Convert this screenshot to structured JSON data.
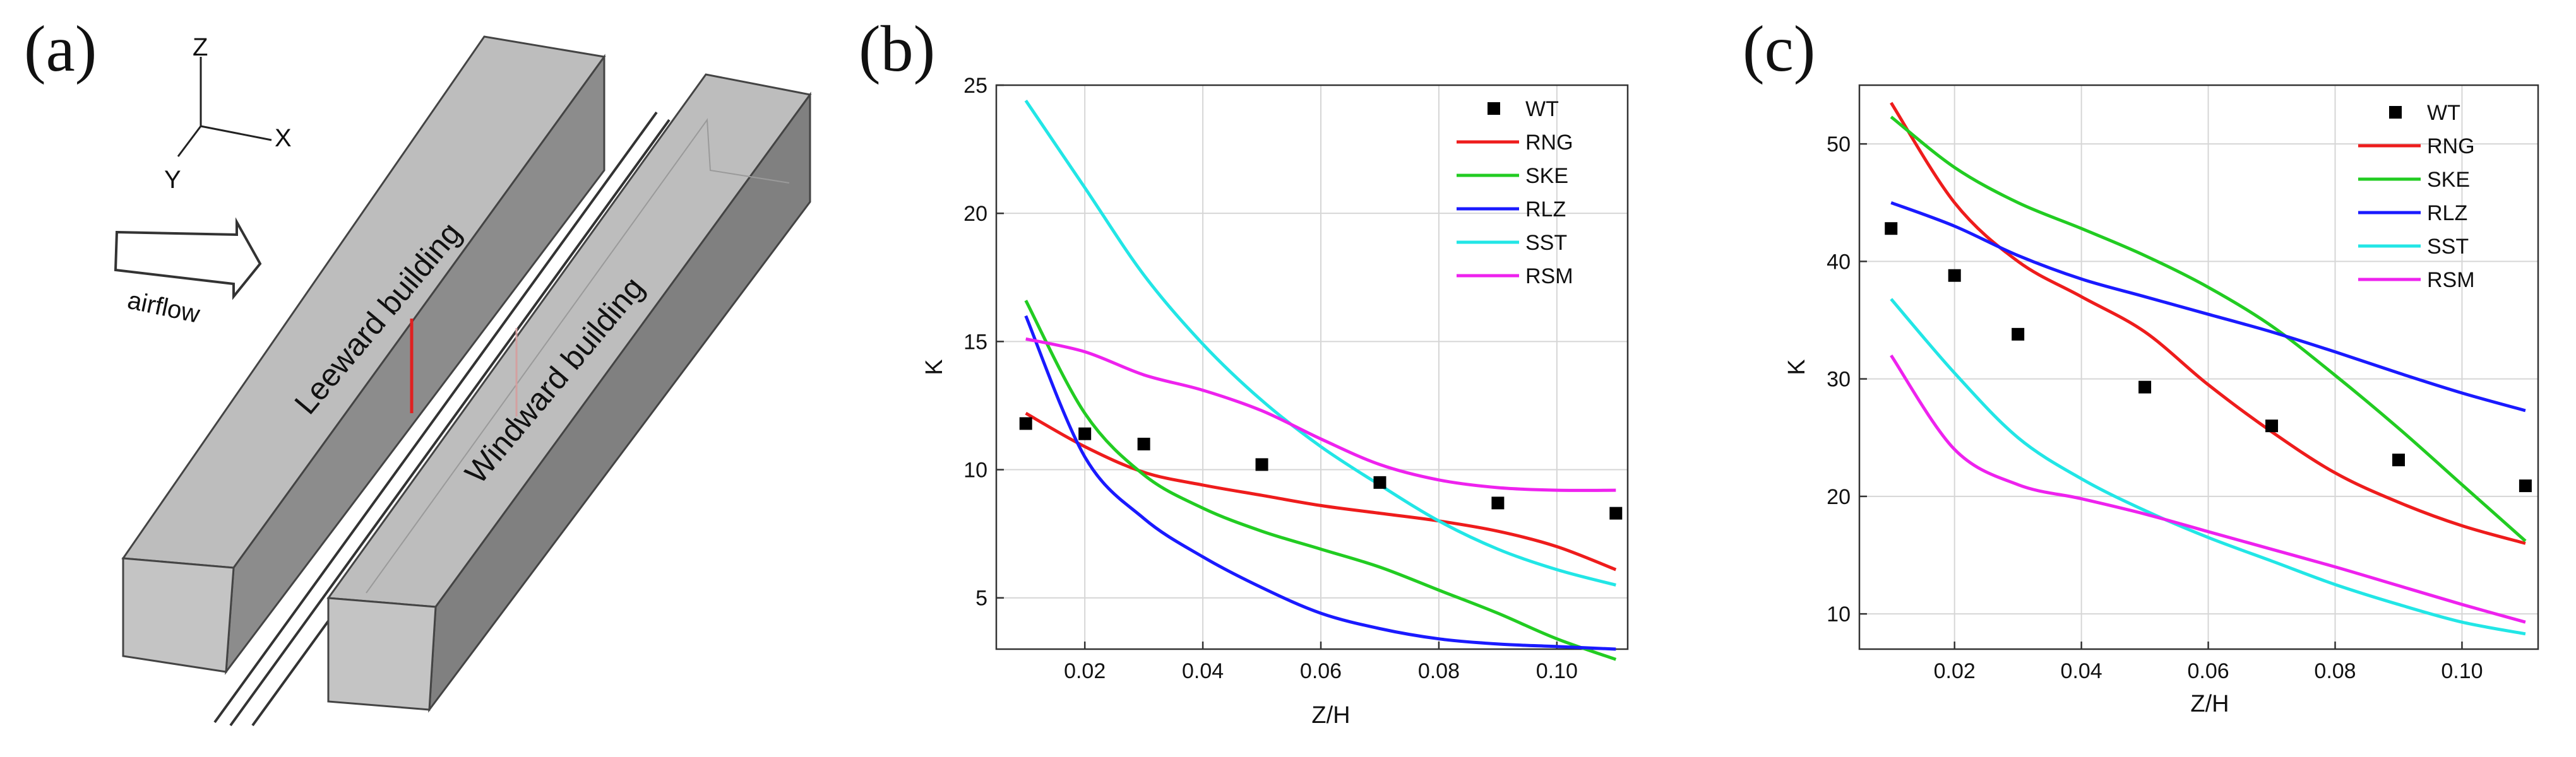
{
  "panels": {
    "a": {
      "label": "(a)"
    },
    "b": {
      "label": "(b)"
    },
    "c": {
      "label": "(c)"
    }
  },
  "diagram": {
    "axes": {
      "z": "Z",
      "x": "X",
      "y": "Y"
    },
    "airflow": "airflow",
    "leeward": "Leeward building",
    "windward": "Windward building"
  },
  "chart_data": [
    {
      "panel": "(b)",
      "type": "line",
      "xlabel": "Z/H",
      "ylabel": "K",
      "xlim": [
        0.005,
        0.112
      ],
      "ylim": [
        3,
        25
      ],
      "xticks": [
        0.02,
        0.04,
        0.06,
        0.08,
        0.1
      ],
      "xtick_labels": [
        "0.02",
        "0.04",
        "0.06",
        "0.08",
        "0.10"
      ],
      "yticks": [
        5,
        10,
        15,
        20,
        25
      ],
      "ytick_labels": [
        "5",
        "10",
        "15",
        "20",
        "25"
      ],
      "grid": true,
      "legend_position": "top-right",
      "points": {
        "name": "WT",
        "color": "#000000",
        "x": [
          0.01,
          0.02,
          0.03,
          0.05,
          0.07,
          0.09,
          0.11
        ],
        "y": [
          11.8,
          11.4,
          11.0,
          10.2,
          9.5,
          8.7,
          8.3
        ]
      },
      "series": [
        {
          "name": "RNG",
          "color": "#ee1c1c",
          "x": [
            0.01,
            0.02,
            0.03,
            0.04,
            0.05,
            0.06,
            0.07,
            0.08,
            0.09,
            0.1,
            0.11
          ],
          "y": [
            12.2,
            10.9,
            9.9,
            9.4,
            9.0,
            8.6,
            8.3,
            8.0,
            7.6,
            7.0,
            6.1
          ]
        },
        {
          "name": "SKE",
          "color": "#22cc22",
          "x": [
            0.01,
            0.02,
            0.03,
            0.04,
            0.05,
            0.06,
            0.07,
            0.08,
            0.09,
            0.1,
            0.11
          ],
          "y": [
            16.6,
            12.2,
            9.8,
            8.5,
            7.6,
            6.9,
            6.2,
            5.3,
            4.4,
            3.4,
            2.6
          ]
        },
        {
          "name": "RLZ",
          "color": "#1a1aff",
          "x": [
            0.01,
            0.02,
            0.03,
            0.04,
            0.05,
            0.06,
            0.07,
            0.08,
            0.09,
            0.1,
            0.11
          ],
          "y": [
            16.0,
            10.5,
            8.1,
            6.6,
            5.4,
            4.4,
            3.8,
            3.4,
            3.2,
            3.1,
            3.0
          ]
        },
        {
          "name": "SST",
          "color": "#22e6e6",
          "x": [
            0.01,
            0.02,
            0.03,
            0.04,
            0.05,
            0.06,
            0.07,
            0.08,
            0.09,
            0.1,
            0.11
          ],
          "y": [
            24.4,
            21.0,
            17.6,
            14.9,
            12.7,
            10.9,
            9.4,
            8.0,
            6.9,
            6.1,
            5.5
          ]
        },
        {
          "name": "RSM",
          "color": "#ee22ee",
          "x": [
            0.01,
            0.02,
            0.03,
            0.04,
            0.05,
            0.06,
            0.07,
            0.08,
            0.09,
            0.1,
            0.11
          ],
          "y": [
            15.1,
            14.6,
            13.7,
            13.1,
            12.3,
            11.2,
            10.2,
            9.6,
            9.3,
            9.2,
            9.2
          ]
        }
      ]
    },
    {
      "panel": "(c)",
      "type": "line",
      "xlabel": "Z/H",
      "ylabel": "K",
      "xlim": [
        0.005,
        0.112
      ],
      "ylim": [
        7,
        55
      ],
      "xticks": [
        0.02,
        0.04,
        0.06,
        0.08,
        0.1
      ],
      "xtick_labels": [
        "0.02",
        "0.04",
        "0.06",
        "0.08",
        "0.10"
      ],
      "yticks": [
        10,
        20,
        30,
        40,
        50
      ],
      "ytick_labels": [
        "10",
        "20",
        "30",
        "40",
        "50"
      ],
      "grid": true,
      "legend_position": "top-right",
      "points": {
        "name": "WT",
        "color": "#000000",
        "x": [
          0.01,
          0.02,
          0.03,
          0.05,
          0.07,
          0.09,
          0.11
        ],
        "y": [
          42.8,
          38.8,
          33.8,
          29.3,
          26.0,
          23.1,
          20.9
        ]
      },
      "series": [
        {
          "name": "RNG",
          "color": "#ee1c1c",
          "x": [
            0.01,
            0.02,
            0.03,
            0.04,
            0.05,
            0.06,
            0.07,
            0.08,
            0.09,
            0.1,
            0.11
          ],
          "y": [
            53.5,
            45.0,
            40.0,
            37.0,
            34.0,
            29.5,
            25.5,
            22.0,
            19.5,
            17.5,
            16.0
          ]
        },
        {
          "name": "SKE",
          "color": "#22cc22",
          "x": [
            0.01,
            0.02,
            0.03,
            0.04,
            0.05,
            0.06,
            0.07,
            0.08,
            0.09,
            0.1,
            0.11
          ],
          "y": [
            52.3,
            48.0,
            45.0,
            42.8,
            40.5,
            37.8,
            34.5,
            30.3,
            25.8,
            21.0,
            16.2
          ]
        },
        {
          "name": "RLZ",
          "color": "#1a1aff",
          "x": [
            0.01,
            0.02,
            0.03,
            0.04,
            0.05,
            0.06,
            0.07,
            0.08,
            0.09,
            0.1,
            0.11
          ],
          "y": [
            45.0,
            43.0,
            40.5,
            38.5,
            37.0,
            35.5,
            34.0,
            32.3,
            30.5,
            28.8,
            27.3
          ]
        },
        {
          "name": "SST",
          "color": "#22e6e6",
          "x": [
            0.01,
            0.02,
            0.03,
            0.04,
            0.05,
            0.06,
            0.07,
            0.08,
            0.09,
            0.1,
            0.11
          ],
          "y": [
            36.8,
            30.5,
            25.0,
            21.5,
            18.8,
            16.5,
            14.5,
            12.5,
            10.8,
            9.3,
            8.3
          ]
        },
        {
          "name": "RSM",
          "color": "#ee22ee",
          "x": [
            0.01,
            0.02,
            0.03,
            0.04,
            0.05,
            0.06,
            0.07,
            0.08,
            0.09,
            0.1,
            0.11
          ],
          "y": [
            32.0,
            24.0,
            21.0,
            19.8,
            18.5,
            17.0,
            15.5,
            14.0,
            12.4,
            10.8,
            9.3
          ]
        }
      ]
    }
  ]
}
